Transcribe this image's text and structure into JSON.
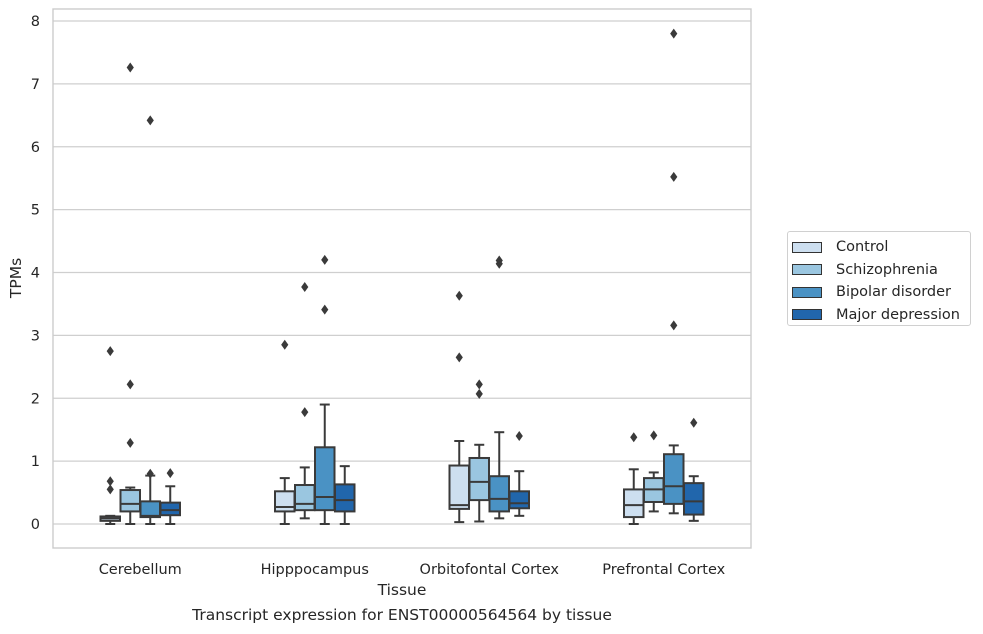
{
  "chart_data": {
    "type": "boxplot",
    "caption": "Transcript expression for ENST00000564564 by tissue",
    "xlabel": "Tissue",
    "ylabel": "TPMs",
    "ylim": [
      -0.38,
      8.2
    ],
    "yticks": [
      0,
      1,
      2,
      3,
      4,
      5,
      6,
      7,
      8
    ],
    "grid": "horizontal",
    "legend_position": "right",
    "categories": [
      "Cerebellum",
      "Hipppocampus",
      "Orbitofontal Cortex",
      "Prefrontal Cortex"
    ],
    "series": [
      {
        "name": "Control",
        "color": "#cddff0",
        "boxes": [
          {
            "whislo": 0.0,
            "q1": 0.05,
            "med": 0.09,
            "q3": 0.12,
            "whishi": 0.13,
            "fliers": [
              0.55,
              0.68,
              2.75
            ]
          },
          {
            "whislo": 0.0,
            "q1": 0.2,
            "med": 0.27,
            "q3": 0.52,
            "whishi": 0.73,
            "fliers": [
              2.85
            ]
          },
          {
            "whislo": 0.03,
            "q1": 0.24,
            "med": 0.3,
            "q3": 0.93,
            "whishi": 1.32,
            "fliers": [
              2.65,
              3.63
            ]
          },
          {
            "whislo": 0.0,
            "q1": 0.11,
            "med": 0.3,
            "q3": 0.55,
            "whishi": 0.87,
            "fliers": [
              1.38
            ]
          }
        ]
      },
      {
        "name": "Schizophrenia",
        "color": "#9ac6e0",
        "boxes": [
          {
            "whislo": 0.0,
            "q1": 0.2,
            "med": 0.32,
            "q3": 0.54,
            "whishi": 0.58,
            "fliers": [
              1.29,
              2.22,
              7.26
            ]
          },
          {
            "whislo": 0.09,
            "q1": 0.22,
            "med": 0.32,
            "q3": 0.62,
            "whishi": 0.9,
            "fliers": [
              1.78,
              3.77
            ]
          },
          {
            "whislo": 0.04,
            "q1": 0.38,
            "med": 0.67,
            "q3": 1.05,
            "whishi": 1.26,
            "fliers": [
              2.07,
              2.22
            ]
          },
          {
            "whislo": 0.2,
            "q1": 0.35,
            "med": 0.55,
            "q3": 0.73,
            "whishi": 0.82,
            "fliers": [
              1.41
            ]
          }
        ]
      },
      {
        "name": "Bipolar disorder",
        "color": "#4a92c4",
        "boxes": [
          {
            "whislo": 0.0,
            "q1": 0.11,
            "med": 0.13,
            "q3": 0.36,
            "whishi": 0.77,
            "fliers": [
              0.8,
              6.42
            ]
          },
          {
            "whislo": 0.0,
            "q1": 0.22,
            "med": 0.43,
            "q3": 1.22,
            "whishi": 1.9,
            "fliers": [
              3.41,
              4.2
            ]
          },
          {
            "whislo": 0.09,
            "q1": 0.2,
            "med": 0.4,
            "q3": 0.76,
            "whishi": 1.46,
            "fliers": [
              4.14,
              4.19
            ]
          },
          {
            "whislo": 0.17,
            "q1": 0.32,
            "med": 0.6,
            "q3": 1.11,
            "whishi": 1.25,
            "fliers": [
              3.16,
              5.52,
              7.8
            ]
          }
        ]
      },
      {
        "name": "Major depression",
        "color": "#2166ac",
        "boxes": [
          {
            "whislo": 0.0,
            "q1": 0.14,
            "med": 0.22,
            "q3": 0.34,
            "whishi": 0.6,
            "fliers": [
              0.81
            ]
          },
          {
            "whislo": 0.0,
            "q1": 0.2,
            "med": 0.38,
            "q3": 0.63,
            "whishi": 0.92,
            "fliers": []
          },
          {
            "whislo": 0.13,
            "q1": 0.25,
            "med": 0.33,
            "q3": 0.52,
            "whishi": 0.84,
            "fliers": [
              1.4
            ]
          },
          {
            "whislo": 0.05,
            "q1": 0.15,
            "med": 0.36,
            "q3": 0.65,
            "whishi": 0.76,
            "fliers": [
              1.61
            ]
          }
        ]
      }
    ]
  }
}
